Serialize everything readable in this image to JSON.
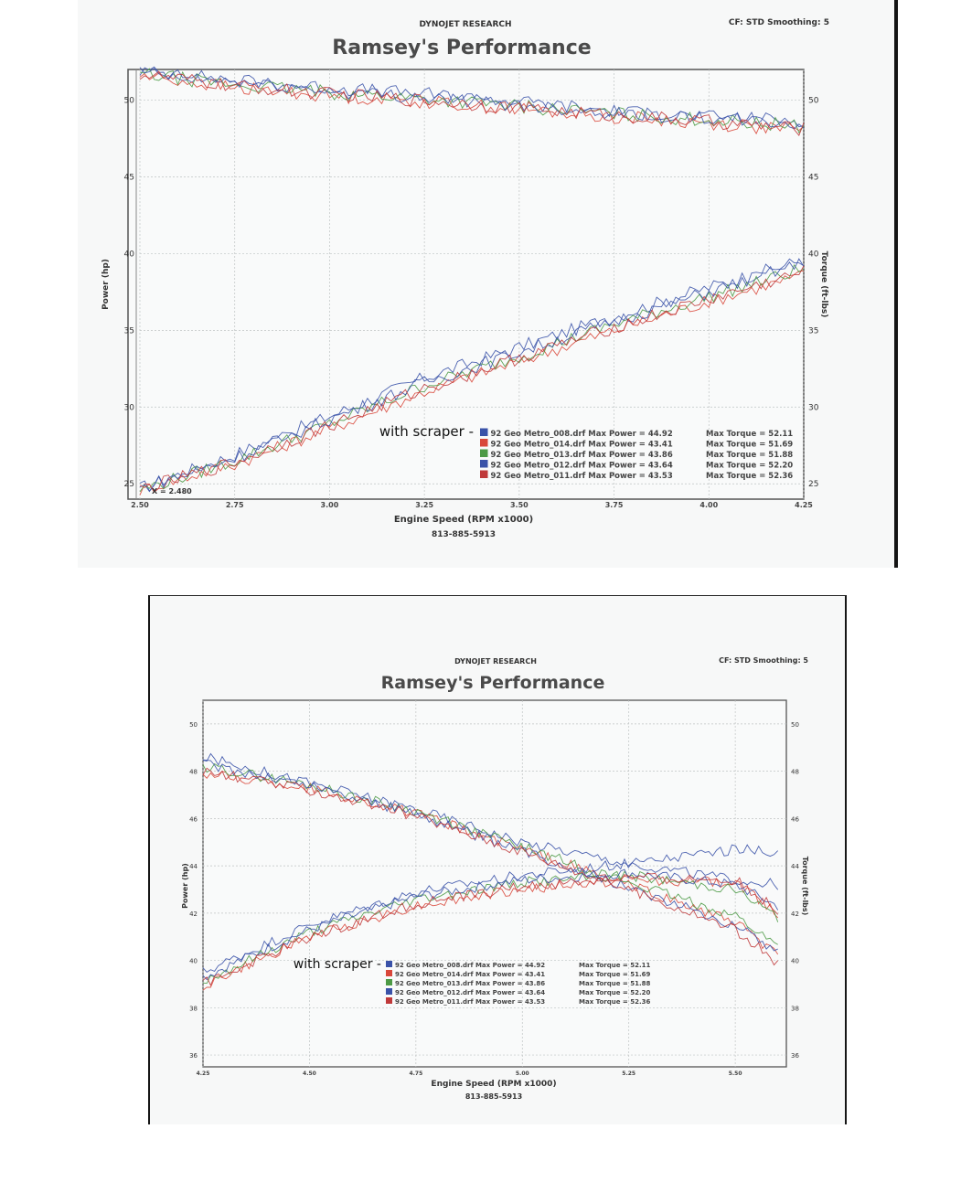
{
  "charts": [
    {
      "brand": "DYNOJET RESEARCH",
      "settings": "CF: STD  Smoothing: 5",
      "title": "Ramsey's Performance",
      "xlabel": "Engine Speed (RPM x1000)",
      "ylabel_left": "Power (hp)",
      "ylabel_right": "Torque (ft-lbs)",
      "phone": "813-885-5913",
      "cursor_readout": "X = 2.480",
      "annotation": "with scraper -",
      "legend": [
        {
          "run": "92 Geo Metro_008.drf Max Power = 44.92",
          "torque": "Max Torque = 52.11",
          "color": "#3a52a8"
        },
        {
          "run": "92 Geo Metro_014.drf Max Power = 43.41",
          "torque": "Max Torque = 51.69",
          "color": "#d9473a"
        },
        {
          "run": "92 Geo Metro_013.drf Max Power = 43.86",
          "torque": "Max Torque = 51.88",
          "color": "#4d9a46"
        },
        {
          "run": "92 Geo Metro_012.drf Max Power = 43.64",
          "torque": "Max Torque = 52.20",
          "color": "#3a52a8"
        },
        {
          "run": "92 Geo Metro_011.drf Max Power = 43.53",
          "torque": "Max Torque = 52.36",
          "color": "#c0393a"
        }
      ],
      "x_ticks": [
        "2.50",
        "2.75",
        "3.00",
        "3.25",
        "3.50",
        "3.75",
        "4.00",
        "4.25"
      ],
      "y_ticks_left": [
        "50",
        "45",
        "40",
        "35",
        "30",
        "25"
      ],
      "y_ticks_right": [
        "50",
        "45",
        "40",
        "35",
        "30",
        "25"
      ]
    },
    {
      "brand": "DYNOJET RESEARCH",
      "settings": "CF: STD  Smoothing: 5",
      "title": "Ramsey's Performance",
      "xlabel": "Engine Speed (RPM x1000)",
      "ylabel_left": "Power (hp)",
      "ylabel_right": "Torque (ft-lbs)",
      "phone": "813-885-5913",
      "annotation": "with scraper -",
      "legend": [
        {
          "run": "92 Geo Metro_008.drf Max Power = 44.92",
          "torque": "Max Torque = 52.11",
          "color": "#3a52a8"
        },
        {
          "run": "92 Geo Metro_014.drf Max Power = 43.41",
          "torque": "Max Torque = 51.69",
          "color": "#d9473a"
        },
        {
          "run": "92 Geo Metro_013.drf Max Power = 43.86",
          "torque": "Max Torque = 51.88",
          "color": "#4d9a46"
        },
        {
          "run": "92 Geo Metro_012.drf Max Power = 43.64",
          "torque": "Max Torque = 52.20",
          "color": "#3a52a8"
        },
        {
          "run": "92 Geo Metro_011.drf Max Power = 43.53",
          "torque": "Max Torque = 52.36",
          "color": "#c0393a"
        }
      ],
      "x_ticks": [
        "4.25",
        "4.50",
        "4.75",
        "5.00",
        "5.25",
        "5.50"
      ],
      "y_ticks_left": [
        "50",
        "48",
        "46",
        "44",
        "42",
        "40",
        "38",
        "36"
      ],
      "y_ticks_right": [
        "50",
        "48",
        "46",
        "44",
        "42",
        "40",
        "38",
        "36"
      ]
    }
  ],
  "chart_data": [
    {
      "type": "line",
      "title": "Ramsey's Performance",
      "xlabel": "Engine Speed (RPM x1000)",
      "ylabel": "Power (hp)",
      "xlim": [
        2.5,
        4.25
      ],
      "ylim": [
        24,
        52
      ],
      "x": [
        2.5,
        2.75,
        3.0,
        3.25,
        3.5,
        3.75,
        4.0,
        4.25
      ],
      "series": [
        {
          "name": "92 Geo Metro_008.drf",
          "color": "#3a52a8",
          "power": [
            24.7,
            26.9,
            29.4,
            31.9,
            33.9,
            35.9,
            37.8,
            39.6
          ],
          "torque": [
            51.9,
            51.3,
            50.8,
            50.4,
            49.9,
            49.3,
            48.9,
            48.7
          ]
        },
        {
          "name": "92 Geo Metro_014.drf",
          "color": "#d9473a",
          "power": [
            24.6,
            26.3,
            28.6,
            31.0,
            33.0,
            35.0,
            36.9,
            38.6
          ],
          "torque": [
            51.6,
            50.8,
            50.3,
            49.9,
            49.4,
            48.9,
            48.5,
            48.0
          ]
        },
        {
          "name": "92 Geo Metro_013.drf",
          "color": "#4d9a46",
          "power": [
            24.6,
            26.5,
            28.9,
            31.4,
            33.3,
            35.4,
            37.2,
            39.0
          ],
          "torque": [
            51.7,
            51.0,
            50.5,
            50.1,
            49.6,
            49.1,
            48.7,
            48.3
          ]
        },
        {
          "name": "92 Geo Metro_012.drf",
          "color": "#3a52a8",
          "power": [
            24.7,
            26.7,
            29.2,
            31.6,
            33.6,
            35.6,
            37.5,
            39.4
          ],
          "torque": [
            51.8,
            51.2,
            50.6,
            50.2,
            49.7,
            49.2,
            48.8,
            48.4
          ]
        },
        {
          "name": "92 Geo Metro_011.drf",
          "color": "#c0393a",
          "power": [
            24.6,
            26.4,
            28.8,
            31.2,
            33.2,
            35.2,
            37.0,
            38.8
          ],
          "torque": [
            51.7,
            50.9,
            50.4,
            50.0,
            49.5,
            49.0,
            48.6,
            48.1
          ]
        }
      ]
    },
    {
      "type": "line",
      "title": "Ramsey's Performance",
      "xlabel": "Engine Speed (RPM x1000)",
      "ylabel": "Power (hp)",
      "xlim": [
        4.25,
        5.62
      ],
      "ylim": [
        35.5,
        51
      ],
      "x": [
        4.25,
        4.5,
        4.75,
        5.0,
        5.25,
        5.5,
        5.6
      ],
      "series": [
        {
          "name": "92 Geo Metro_008.drf",
          "color": "#3a52a8",
          "power": [
            39.5,
            41.5,
            42.9,
            43.6,
            44.1,
            43.4,
            43.2
          ],
          "torque": [
            48.6,
            47.5,
            46.4,
            45.0,
            44.1,
            44.7,
            44.6
          ]
        },
        {
          "name": "92 Geo Metro_014.drf",
          "color": "#d9473a",
          "power": [
            38.9,
            41.0,
            42.3,
            43.0,
            43.4,
            43.3,
            42.0
          ],
          "torque": [
            47.9,
            47.3,
            46.2,
            44.7,
            43.2,
            41.6,
            40.2
          ]
        },
        {
          "name": "92 Geo Metro_013.drf",
          "color": "#4d9a46",
          "power": [
            39.1,
            41.2,
            42.6,
            43.3,
            43.6,
            43.0,
            41.8
          ],
          "torque": [
            48.2,
            47.4,
            46.3,
            44.8,
            43.3,
            41.9,
            40.6
          ]
        },
        {
          "name": "92 Geo Metro_012.drf",
          "color": "#3a52a8",
          "power": [
            39.3,
            41.3,
            42.7,
            43.4,
            43.7,
            43.2,
            42.3
          ],
          "torque": [
            48.3,
            47.4,
            46.2,
            44.6,
            43.1,
            41.5,
            40.4
          ]
        },
        {
          "name": "92 Geo Metro_011.drf",
          "color": "#c0393a",
          "power": [
            39.0,
            41.0,
            42.4,
            43.1,
            43.5,
            43.4,
            42.1
          ],
          "torque": [
            48.0,
            47.2,
            46.1,
            44.6,
            43.0,
            41.3,
            39.9
          ]
        }
      ]
    }
  ]
}
